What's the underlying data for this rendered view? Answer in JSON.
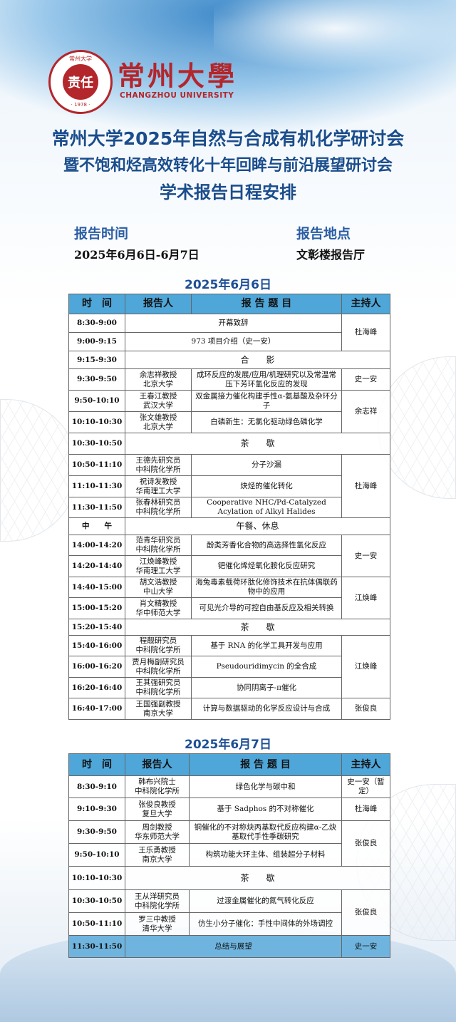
{
  "header": {
    "logo": {
      "seal_text": "常州大学",
      "seal_glyph": "责任",
      "seal_year": "· 1978 ·",
      "name_cn": "常州大學",
      "name_en": "CHANGZHOU UNIVERSITY"
    },
    "title_line1": "常州大学2025年自然与合成有机化学研讨会",
    "title_line2": "暨不饱和烃高效转化十年回眸与前沿展望研讨会",
    "title_line3": "学术报告日程安排"
  },
  "info": {
    "time_label": "报告时间",
    "time_value": "2025年6月6日-6月7日",
    "place_label": "报告地点",
    "place_value": "文彰楼报告厅"
  },
  "columns": [
    "时　间",
    "报告人",
    "报 告 题 目",
    "主持人"
  ],
  "days": [
    {
      "date": "2025年6月6日",
      "rows": [
        {
          "time": "8:30-9:00",
          "merge": "speaker_title",
          "title": "开幕致辞",
          "host": "杜海峰",
          "host_rows": 2
        },
        {
          "time": "9:00-9:15",
          "merge": "speaker_title",
          "title": "973 项目介绍（史一安）"
        },
        {
          "time": "9:15-9:30",
          "merge": "all",
          "title": "合　　影"
        },
        {
          "time": "9:30-9:50",
          "speaker": "余志祥教授",
          "affiliation": "北京大学",
          "title": "成环反应的发展/应用/机理研究以及常温常压下芳环氢化反应的发现",
          "host": "史一安",
          "host_rows": 1
        },
        {
          "time": "9:50-10:10",
          "speaker": "王春江教授",
          "affiliation": "武汉大学",
          "title": "双金属接力催化构建手性α-氨基酸及杂环分子",
          "host": "余志祥",
          "host_rows": 2
        },
        {
          "time": "10:10-10:30",
          "speaker": "张文雄教授",
          "affiliation": "北京大学",
          "title": "白磷新生：无氯化驱动绿色磷化学"
        },
        {
          "time": "10:30-10:50",
          "merge": "all",
          "title": "茶　　歇"
        },
        {
          "time": "10:50-11:10",
          "speaker": "王德先研究员",
          "affiliation": "中科院化学所",
          "title": "分子沙漏",
          "host": "杜海峰",
          "host_rows": 3
        },
        {
          "time": "11:10-11:30",
          "speaker": "祝诗发教授",
          "affiliation": "华南理工大学",
          "title": "炔烃的催化转化"
        },
        {
          "time": "11:30-11:50",
          "speaker": "张春林研究员",
          "affiliation": "中科院化学所",
          "title": "Cooperative NHC/Pd-Catalyzed Acylation of Alkyl Halides"
        },
        {
          "time": "中　　午",
          "merge": "all",
          "title": "午餐、休息"
        },
        {
          "time": "14:00-14:20",
          "speaker": "范青华研究员",
          "affiliation": "中科院化学所",
          "title": "酚类芳香化合物的高选择性氢化反应",
          "host": "史一安",
          "host_rows": 2
        },
        {
          "time": "14:20-14:40",
          "speaker": "江焕峰教授",
          "affiliation": "华南理工大学",
          "title": "钯催化烯烃氧化胺化反应研究"
        },
        {
          "time": "14:40-15:00",
          "speaker": "胡文浩教授",
          "affiliation": "中山大学",
          "title": "海兔毒素载荷环肽化修饰技术在抗体偶联药物中的应用",
          "host": "江焕峰",
          "host_rows": 2
        },
        {
          "time": "15:00-15:20",
          "speaker": "肖文精教授",
          "affiliation": "华中师范大学",
          "title": "可见光介导的可控自由基反应及相关转换"
        },
        {
          "time": "15:20-15:40",
          "merge": "all",
          "title": "茶　　歇"
        },
        {
          "time": "15:40-16:00",
          "speaker": "程靓研究员",
          "affiliation": "中科院化学所",
          "title": "基于 RNA 的化学工具开发与应用",
          "host": "江焕峰",
          "host_rows": 3
        },
        {
          "time": "16:00-16:20",
          "speaker": "贾月梅副研究员",
          "affiliation": "中科院化学所",
          "title": "Pseudouridimycin 的全合成"
        },
        {
          "time": "16:20-16:40",
          "speaker": "王其强研究员",
          "affiliation": "中科院化学所",
          "title": "协同阴离子-π催化"
        },
        {
          "time": "16:40-17:00",
          "speaker": "王国强副教授",
          "affiliation": "南京大学",
          "title": "计算与数据驱动的化学反应设计与合成",
          "host": "张俊良",
          "host_rows": 1
        }
      ]
    },
    {
      "date": "2025年6月7日",
      "rows": [
        {
          "time": "8:30-9:10",
          "speaker": "韩布兴院士",
          "affiliation": "中科院化学所",
          "title": "绿色化学与碳中和",
          "host": "史一安（暂定）",
          "host_rows": 1
        },
        {
          "time": "9:10-9:30",
          "speaker": "张俊良教授",
          "affiliation": "复旦大学",
          "title": "基于 Sadphos 的不对称催化",
          "host": "杜海峰",
          "host_rows": 1
        },
        {
          "time": "9:30-9:50",
          "speaker": "周剑教授",
          "affiliation": "华东师范大学",
          "title": "铜催化的不对称炔丙基取代反应构建α-乙炔基取代手性季碳研究",
          "host": "张俊良",
          "host_rows": 2
        },
        {
          "time": "9:50-10:10",
          "speaker": "王乐勇教授",
          "affiliation": "南京大学",
          "title": "构筑功能大环主体、组装超分子材料"
        },
        {
          "time": "10:10-10:30",
          "merge": "all",
          "title": "茶　　歇"
        },
        {
          "time": "10:30-10:50",
          "speaker": "王从洋研究员",
          "affiliation": "中科院化学所",
          "title": "过渡金属催化的氮气转化反应",
          "host": "张俊良",
          "host_rows": 2
        },
        {
          "time": "10:50-11:10",
          "speaker": "罗三中教授",
          "affiliation": "清华大学",
          "title": "仿生小分子催化：手性中间体的外场调控"
        },
        {
          "time": "11:30-11:50",
          "merge": "speaker_title",
          "title": "总结与展望",
          "host": "史一安",
          "host_rows": 1
        }
      ]
    }
  ],
  "colors": {
    "title": "#1a4d8c",
    "table_header": "#4fa6d8",
    "logo_red": "#b3262b"
  }
}
